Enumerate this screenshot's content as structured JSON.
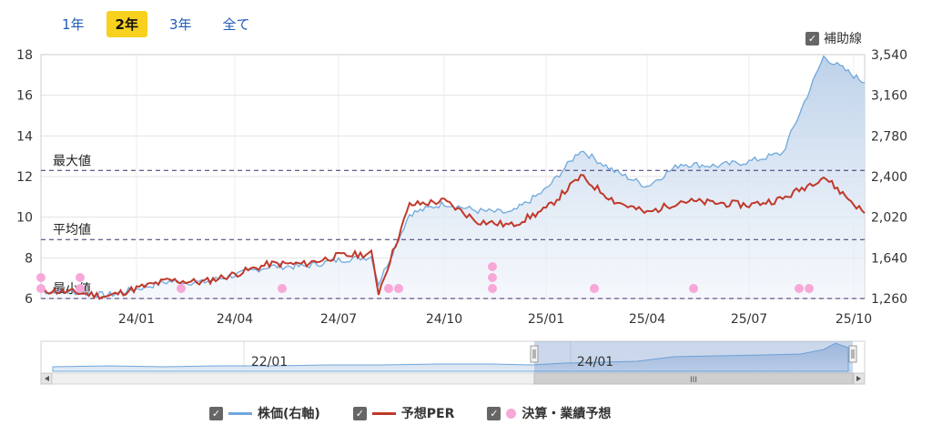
{
  "range_tabs": [
    {
      "label": "1年",
      "active": false
    },
    {
      "label": "2年",
      "active": true
    },
    {
      "label": "3年",
      "active": false
    },
    {
      "label": "全て",
      "active": false
    }
  ],
  "aux_toggle": {
    "label": "補助線",
    "checked": true
  },
  "legend": [
    {
      "label": "株価(右軸)",
      "color": "#6fa8dc",
      "kind": "line"
    },
    {
      "label": "予想PER",
      "color": "#c0392b",
      "kind": "line"
    },
    {
      "label": "決算・業績予想",
      "color": "#f7a8d8",
      "kind": "dot"
    }
  ],
  "navigator": {
    "tick_labels": [
      "22/01",
      "24/01"
    ],
    "handle_label": "III"
  },
  "chart_data": {
    "type": "line",
    "x_ticks": [
      "24/01",
      "24/04",
      "24/07",
      "24/10",
      "25/01",
      "25/04",
      "25/07",
      "25/10"
    ],
    "left_axis": {
      "ticks": [
        6,
        8,
        10,
        12,
        14,
        16,
        18
      ],
      "ylim": [
        6,
        18
      ]
    },
    "right_axis": {
      "ticks": [
        "1,260",
        "1,640",
        "2,020",
        "2,400",
        "2,780",
        "3,160",
        "3,540"
      ],
      "ylim": [
        1260,
        3540
      ]
    },
    "reference_lines": [
      {
        "label": "最大値",
        "value": 12.3
      },
      {
        "label": "平均値",
        "value": 8.9
      },
      {
        "label": "最小値",
        "value": 6.0
      }
    ],
    "series": [
      {
        "name": "株価(右軸)",
        "axis": "right",
        "color": "#6fa8dc",
        "x": [
          "23/10",
          "23/11",
          "23/12",
          "24/01",
          "24/02",
          "24/03",
          "24/04",
          "24/05",
          "24/06",
          "24/07",
          "24/08a",
          "24/08b",
          "24/09",
          "24/10",
          "24/11",
          "24/12",
          "25/01",
          "25/02",
          "25/03",
          "25/04",
          "25/05",
          "25/06",
          "25/07",
          "25/08",
          "25/09",
          "25/10"
        ],
        "values": [
          1330,
          1320,
          1290,
          1350,
          1420,
          1410,
          1480,
          1560,
          1560,
          1620,
          1650,
          1400,
          2050,
          2150,
          2080,
          2060,
          2280,
          2650,
          2450,
          2310,
          2520,
          2500,
          2540,
          2620,
          3520,
          3280
        ]
      },
      {
        "name": "予想PER",
        "axis": "left",
        "color": "#c0392b",
        "x": [
          "23/10",
          "23/11",
          "23/12",
          "24/01",
          "24/02",
          "24/03",
          "24/04",
          "24/05",
          "24/06",
          "24/07",
          "24/08a",
          "24/08b",
          "24/09",
          "24/10",
          "24/11",
          "24/12",
          "25/01",
          "25/02",
          "25/03",
          "25/04",
          "25/05",
          "25/06",
          "25/07",
          "25/08",
          "25/09",
          "25/10"
        ],
        "values": [
          6.4,
          6.3,
          6.1,
          6.5,
          6.9,
          6.8,
          7.2,
          7.7,
          7.7,
          8.1,
          8.2,
          6.3,
          10.6,
          10.8,
          9.8,
          9.6,
          10.4,
          12.0,
          10.8,
          10.2,
          10.8,
          10.7,
          10.6,
          10.9,
          12.0,
          10.2
        ]
      },
      {
        "name": "決算・業績予想",
        "type": "scatter",
        "color": "#f7a8d8",
        "x": [
          "23/10",
          "23/10",
          "23/11",
          "23/11",
          "24/02",
          "24/05",
          "24/08",
          "24/08",
          "24/11",
          "24/11",
          "24/11",
          "25/02",
          "25/05",
          "25/08",
          "25/08"
        ],
        "values": [
          1,
          2,
          1,
          2,
          1,
          1,
          1,
          1,
          1,
          2,
          3,
          1,
          1,
          1,
          1
        ]
      }
    ]
  }
}
